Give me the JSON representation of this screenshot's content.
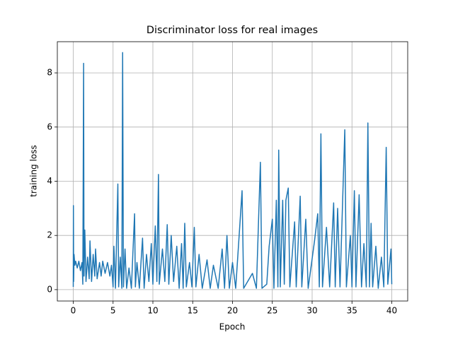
{
  "chart_data": {
    "type": "line",
    "title": "Discriminator loss for real images",
    "xlabel": "Epoch",
    "ylabel": "training loss",
    "color": "#1f77b4",
    "grid": true,
    "xlim": [
      -2,
      42
    ],
    "ylim": [
      -0.42,
      9.15
    ],
    "xticks": [
      0,
      5,
      10,
      15,
      20,
      25,
      30,
      35,
      40
    ],
    "yticks": [
      0,
      2,
      4,
      6,
      8
    ],
    "x": [
      0,
      0.02,
      0.05,
      0.1,
      0.2,
      0.3,
      0.5,
      0.7,
      0.9,
      1.1,
      1.2,
      1.3,
      1.35,
      1.45,
      1.6,
      1.8,
      2.0,
      2.1,
      2.3,
      2.5,
      2.7,
      2.8,
      3.0,
      3.3,
      3.5,
      3.7,
      4.0,
      4.3,
      4.6,
      4.8,
      5.0,
      5.1,
      5.3,
      5.6,
      5.7,
      5.9,
      6.1,
      6.2,
      6.3,
      6.5,
      6.7,
      7.0,
      7.3,
      7.7,
      7.8,
      8.0,
      8.3,
      8.7,
      8.9,
      9.2,
      9.5,
      9.8,
      10.0,
      10.3,
      10.5,
      10.7,
      10.8,
      11.2,
      11.5,
      11.8,
      12.0,
      12.3,
      12.6,
      13.0,
      13.3,
      13.6,
      13.8,
      14.0,
      14.2,
      14.6,
      14.9,
      15.2,
      15.4,
      15.8,
      16.2,
      16.8,
      17.2,
      17.6,
      18.2,
      18.7,
      19.0,
      19.3,
      19.6,
      20.0,
      20.4,
      21.2,
      21.4,
      22.5,
      23.0,
      23.5,
      23.7,
      24.3,
      24.6,
      25.0,
      25.2,
      25.5,
      25.7,
      25.8,
      26.0,
      26.3,
      26.5,
      26.7,
      27.0,
      27.2,
      27.8,
      28.0,
      28.5,
      28.7,
      29.2,
      29.5,
      30.3,
      30.7,
      30.9,
      31.1,
      31.3,
      31.8,
      32.2,
      32.7,
      32.9,
      33.2,
      33.5,
      34.1,
      34.3,
      34.8,
      35.0,
      35.3,
      35.5,
      35.9,
      36.2,
      36.5,
      36.8,
      37.0,
      37.2,
      37.4,
      37.6,
      38.0,
      38.3,
      38.7,
      39.0,
      39.3,
      39.5,
      39.9,
      40.0
    ],
    "values": [
      0.1,
      3.1,
      0.3,
      1.3,
      0.9,
      1.05,
      0.8,
      1.05,
      0.7,
      1.0,
      0.2,
      8.35,
      0.5,
      2.2,
      0.3,
      1.2,
      0.4,
      1.8,
      0.3,
      1.3,
      0.5,
      1.5,
      0.4,
      1.0,
      0.5,
      1.05,
      0.6,
      1.0,
      0.5,
      0.9,
      0.1,
      1.6,
      0.05,
      3.9,
      0.1,
      1.2,
      0.05,
      8.75,
      0.1,
      1.5,
      0.05,
      0.8,
      0.05,
      2.8,
      0.1,
      1.0,
      0.05,
      1.9,
      0.05,
      1.3,
      0.3,
      1.7,
      0.2,
      2.35,
      0.3,
      4.25,
      0.2,
      1.5,
      0.3,
      2.4,
      0.2,
      2.0,
      0.3,
      1.6,
      0.05,
      1.7,
      0.05,
      2.45,
      0.1,
      1.0,
      0.1,
      2.3,
      0.1,
      1.3,
      0.05,
      1.1,
      0.05,
      0.9,
      0.05,
      1.5,
      0.05,
      2.0,
      0.05,
      1.0,
      0.05,
      3.65,
      0.05,
      0.6,
      0.05,
      4.7,
      0.05,
      0.2,
      1.6,
      2.6,
      0.05,
      3.3,
      0.1,
      5.15,
      0.1,
      3.3,
      0.2,
      3.3,
      3.75,
      0.1,
      2.5,
      0.1,
      3.45,
      0.1,
      2.6,
      0.05,
      1.8,
      2.8,
      0.1,
      5.75,
      0.1,
      2.3,
      0.1,
      3.2,
      0.1,
      3.0,
      0.1,
      5.9,
      0.1,
      2.0,
      0.1,
      3.65,
      0.1,
      3.5,
      0.1,
      1.7,
      0.1,
      6.15,
      0.1,
      2.45,
      0.1,
      1.6,
      0.05,
      1.2,
      0.1,
      5.25,
      0.2,
      1.5,
      0.2
    ]
  }
}
